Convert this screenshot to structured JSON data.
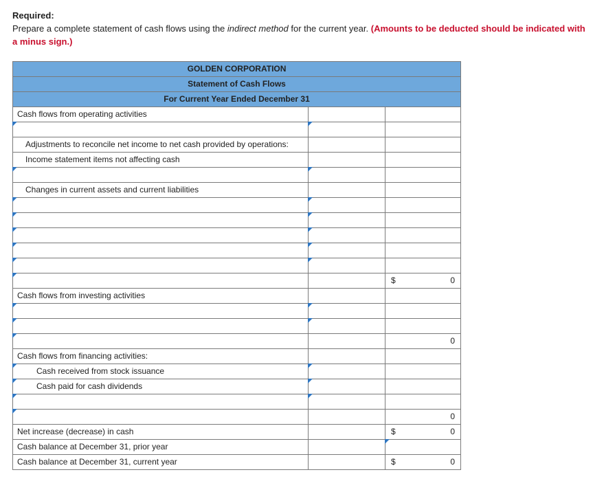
{
  "instructions": {
    "label": "Required:",
    "text_pre": "Prepare a complete statement of cash flows using the ",
    "italic": "indirect method",
    "text_mid": " for the current year. ",
    "red": "(Amounts to be deducted should be indicated with a minus sign.)"
  },
  "header": {
    "company": "GOLDEN CORPORATION",
    "title": "Statement of Cash Flows",
    "period": "For Current Year Ended December 31"
  },
  "rows": {
    "op_heading": "Cash flows from operating activities",
    "adjustments": "Adjustments to reconcile net income to net cash provided by operations:",
    "income_items": "Income statement items not affecting cash",
    "changes": "Changes in current assets and current liabilities",
    "op_total_sym": "$",
    "op_total_val": "0",
    "inv_heading": "Cash flows from investing activities",
    "inv_total_val": "0",
    "fin_heading": "Cash flows from financing activities:",
    "fin_stock": "Cash received from stock issuance",
    "fin_div": "Cash paid for cash dividends",
    "fin_total_val": "0",
    "net_increase": "Net increase (decrease) in cash",
    "net_sym": "$",
    "net_val": "0",
    "prior": "Cash balance at December 31, prior year",
    "current": "Cash balance at December 31, current year",
    "cur_sym": "$",
    "cur_val": "0"
  }
}
